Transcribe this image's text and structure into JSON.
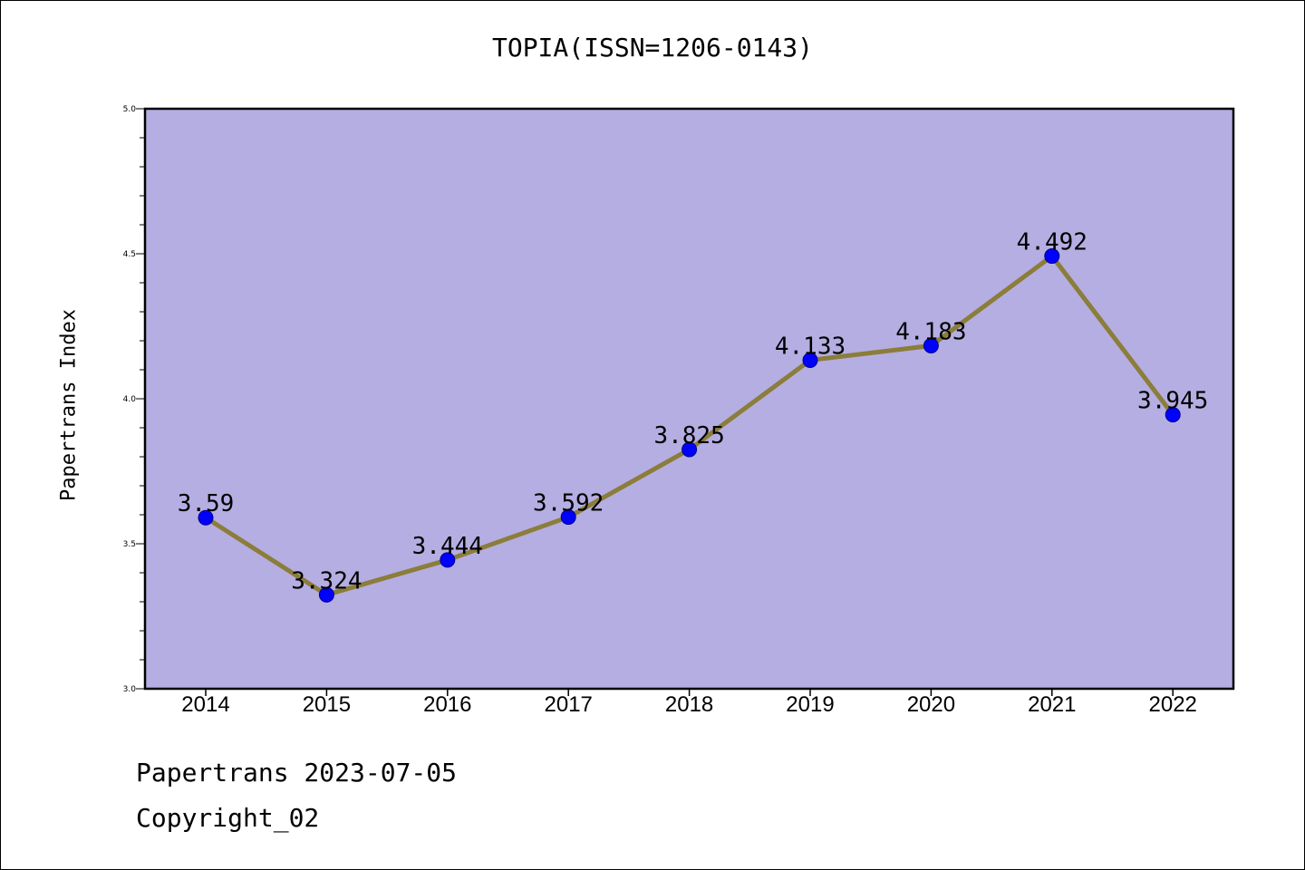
{
  "title": "TOPIA(ISSN=1206-0143)",
  "footer": {
    "line1": "Papertrans 2023-07-05",
    "line2": "Copyright_02"
  },
  "colors": {
    "plot_background": "#b5aee2",
    "line": "#8b7d3a",
    "marker": "#0000ff",
    "marker_edge": "#00008b"
  },
  "chart_data": {
    "type": "line",
    "title": "TOPIA(ISSN=1206-0143)",
    "xlabel": "",
    "ylabel": "Papertrans Index",
    "ylim": [
      3.0,
      5.0
    ],
    "y_ticks": [
      "3.0",
      "3.5",
      "4.0",
      "4.5",
      "5.0"
    ],
    "categories": [
      "2014",
      "2015",
      "2016",
      "2017",
      "2018",
      "2019",
      "2020",
      "2021",
      "2022"
    ],
    "values": [
      3.59,
      3.324,
      3.444,
      3.592,
      3.825,
      4.133,
      4.183,
      4.492,
      3.945
    ],
    "data_labels": [
      "3.59",
      "3.324",
      "3.444",
      "3.592",
      "3.825",
      "4.133",
      "4.183",
      "4.492",
      "3.945"
    ],
    "grid": false,
    "legend": "none"
  }
}
